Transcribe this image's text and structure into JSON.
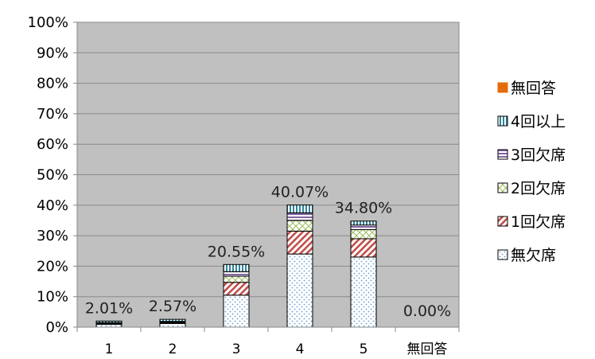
{
  "chart_data": {
    "type": "bar",
    "stacked": true,
    "categories": [
      "1",
      "2",
      "3",
      "4",
      "5",
      "無回答"
    ],
    "ylim": [
      0,
      100
    ],
    "y_ticks": [
      "0%",
      "10%",
      "20%",
      "30%",
      "40%",
      "50%",
      "60%",
      "70%",
      "80%",
      "90%",
      "100%"
    ],
    "grid": true,
    "legend_position": "right",
    "totals_labels": [
      "2.01%",
      "2.57%",
      "20.55%",
      "40.07%",
      "34.80%",
      "0.00%"
    ],
    "series": [
      {
        "name": "無欠席",
        "pattern": "dots",
        "color": "#9bbfe0",
        "values": [
          0.9,
          1.2,
          10.5,
          24.0,
          23.0,
          0
        ]
      },
      {
        "name": "1回欠席",
        "pattern": "diagonal",
        "color": "#c0504d",
        "values": [
          0.3,
          0.3,
          4.2,
          7.5,
          6.0,
          0
        ]
      },
      {
        "name": "2回欠席",
        "pattern": "cross",
        "color": "#9bbb59",
        "values": [
          0.2,
          0.2,
          2.0,
          3.5,
          3.0,
          0
        ]
      },
      {
        "name": "3回欠席",
        "pattern": "hlines",
        "color": "#8064a2",
        "values": [
          0.1,
          0.2,
          1.5,
          2.5,
          1.5,
          0
        ]
      },
      {
        "name": "4回以上",
        "pattern": "vlines",
        "color": "#4bacc6",
        "values": [
          0.51,
          0.67,
          2.35,
          2.57,
          1.3,
          0
        ]
      },
      {
        "name": "無回答",
        "pattern": "solid",
        "color": "#e46c0a",
        "values": [
          0,
          0,
          0,
          0,
          0,
          0
        ]
      }
    ]
  }
}
